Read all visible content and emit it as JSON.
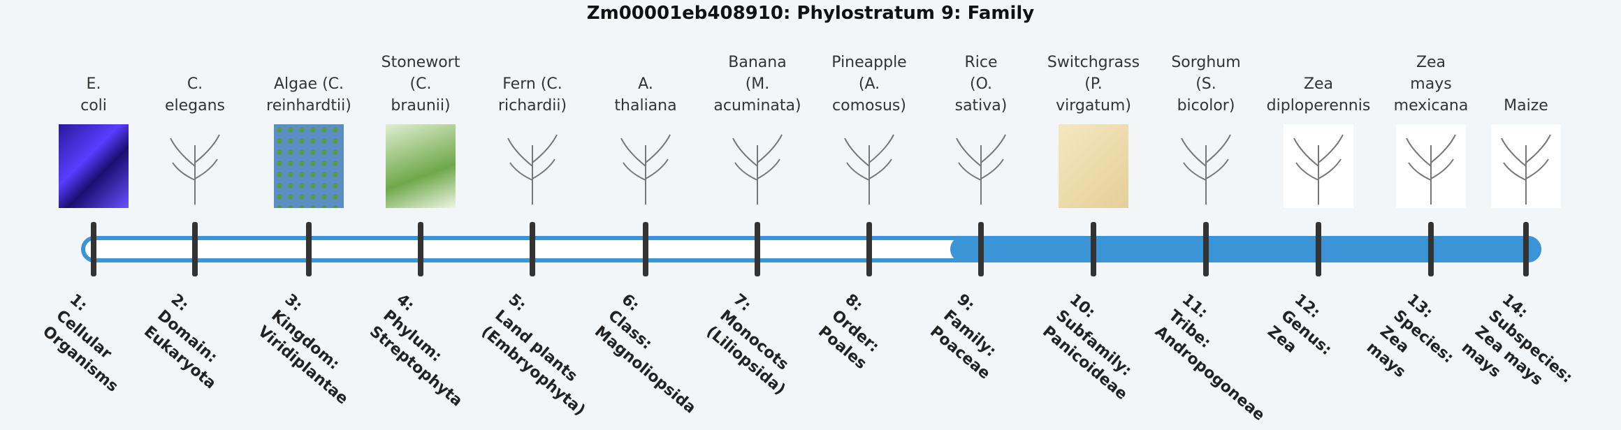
{
  "title": "Zm00001eb408910: Phylostratum 9: Family",
  "current_stratum": 9,
  "accent_color": "#3a94d6",
  "strata": [
    {
      "organism": "E.\ncoli",
      "rank": "1:\nCellular\nOrganisms",
      "icon": "e-coli-image"
    },
    {
      "organism": "C.\nelegans",
      "rank": "2:\nDomain:\nEukaryota",
      "icon": "c-elegans-image"
    },
    {
      "organism": "Algae (C.\nreinhardtii)",
      "rank": "3:\nKingdom:\nViridiplantae",
      "icon": "algae-image"
    },
    {
      "organism": "Stonewort\n(C.\nbraunii)",
      "rank": "4:\nPhylum:\nStreptophyta",
      "icon": "stonewort-image"
    },
    {
      "organism": "Fern (C.\nrichardii)",
      "rank": "5:\nLand plants\n(Embryophyta)",
      "icon": "fern-image"
    },
    {
      "organism": "A.\nthaliana",
      "rank": "6:\nClass:\nMagnoliopsida",
      "icon": "arabidopsis-image"
    },
    {
      "organism": "Banana\n(M.\nacuminata)",
      "rank": "7:\nMonocots\n(Liliopsida)",
      "icon": "banana-image"
    },
    {
      "organism": "Pineapple\n(A.\ncomosus)",
      "rank": "8:\nOrder:\nPoales",
      "icon": "pineapple-image"
    },
    {
      "organism": "Rice\n(O.\nsativa)",
      "rank": "9:\nFamily:\nPoaceae",
      "icon": "rice-image"
    },
    {
      "organism": "Switchgrass\n(P.\nvirgatum)",
      "rank": "10:\nSubfamily:\nPanicoideae",
      "icon": "switchgrass-image"
    },
    {
      "organism": "Sorghum\n(S.\nbicolor)",
      "rank": "11:\nTribe:\nAndropogoneae",
      "icon": "sorghum-image"
    },
    {
      "organism": "Zea\ndiploperennis",
      "rank": "12:\nGenus:\nZea",
      "icon": "zea-diploperennis-image"
    },
    {
      "organism": "Zea\nmays\nmexicana",
      "rank": "13:\nSpecies:\nZea\nmays",
      "icon": "zea-mexicana-image"
    },
    {
      "organism": "Maize",
      "rank": "14:\nSubspecies:\nZea mays\nmays",
      "icon": "maize-image"
    }
  ]
}
